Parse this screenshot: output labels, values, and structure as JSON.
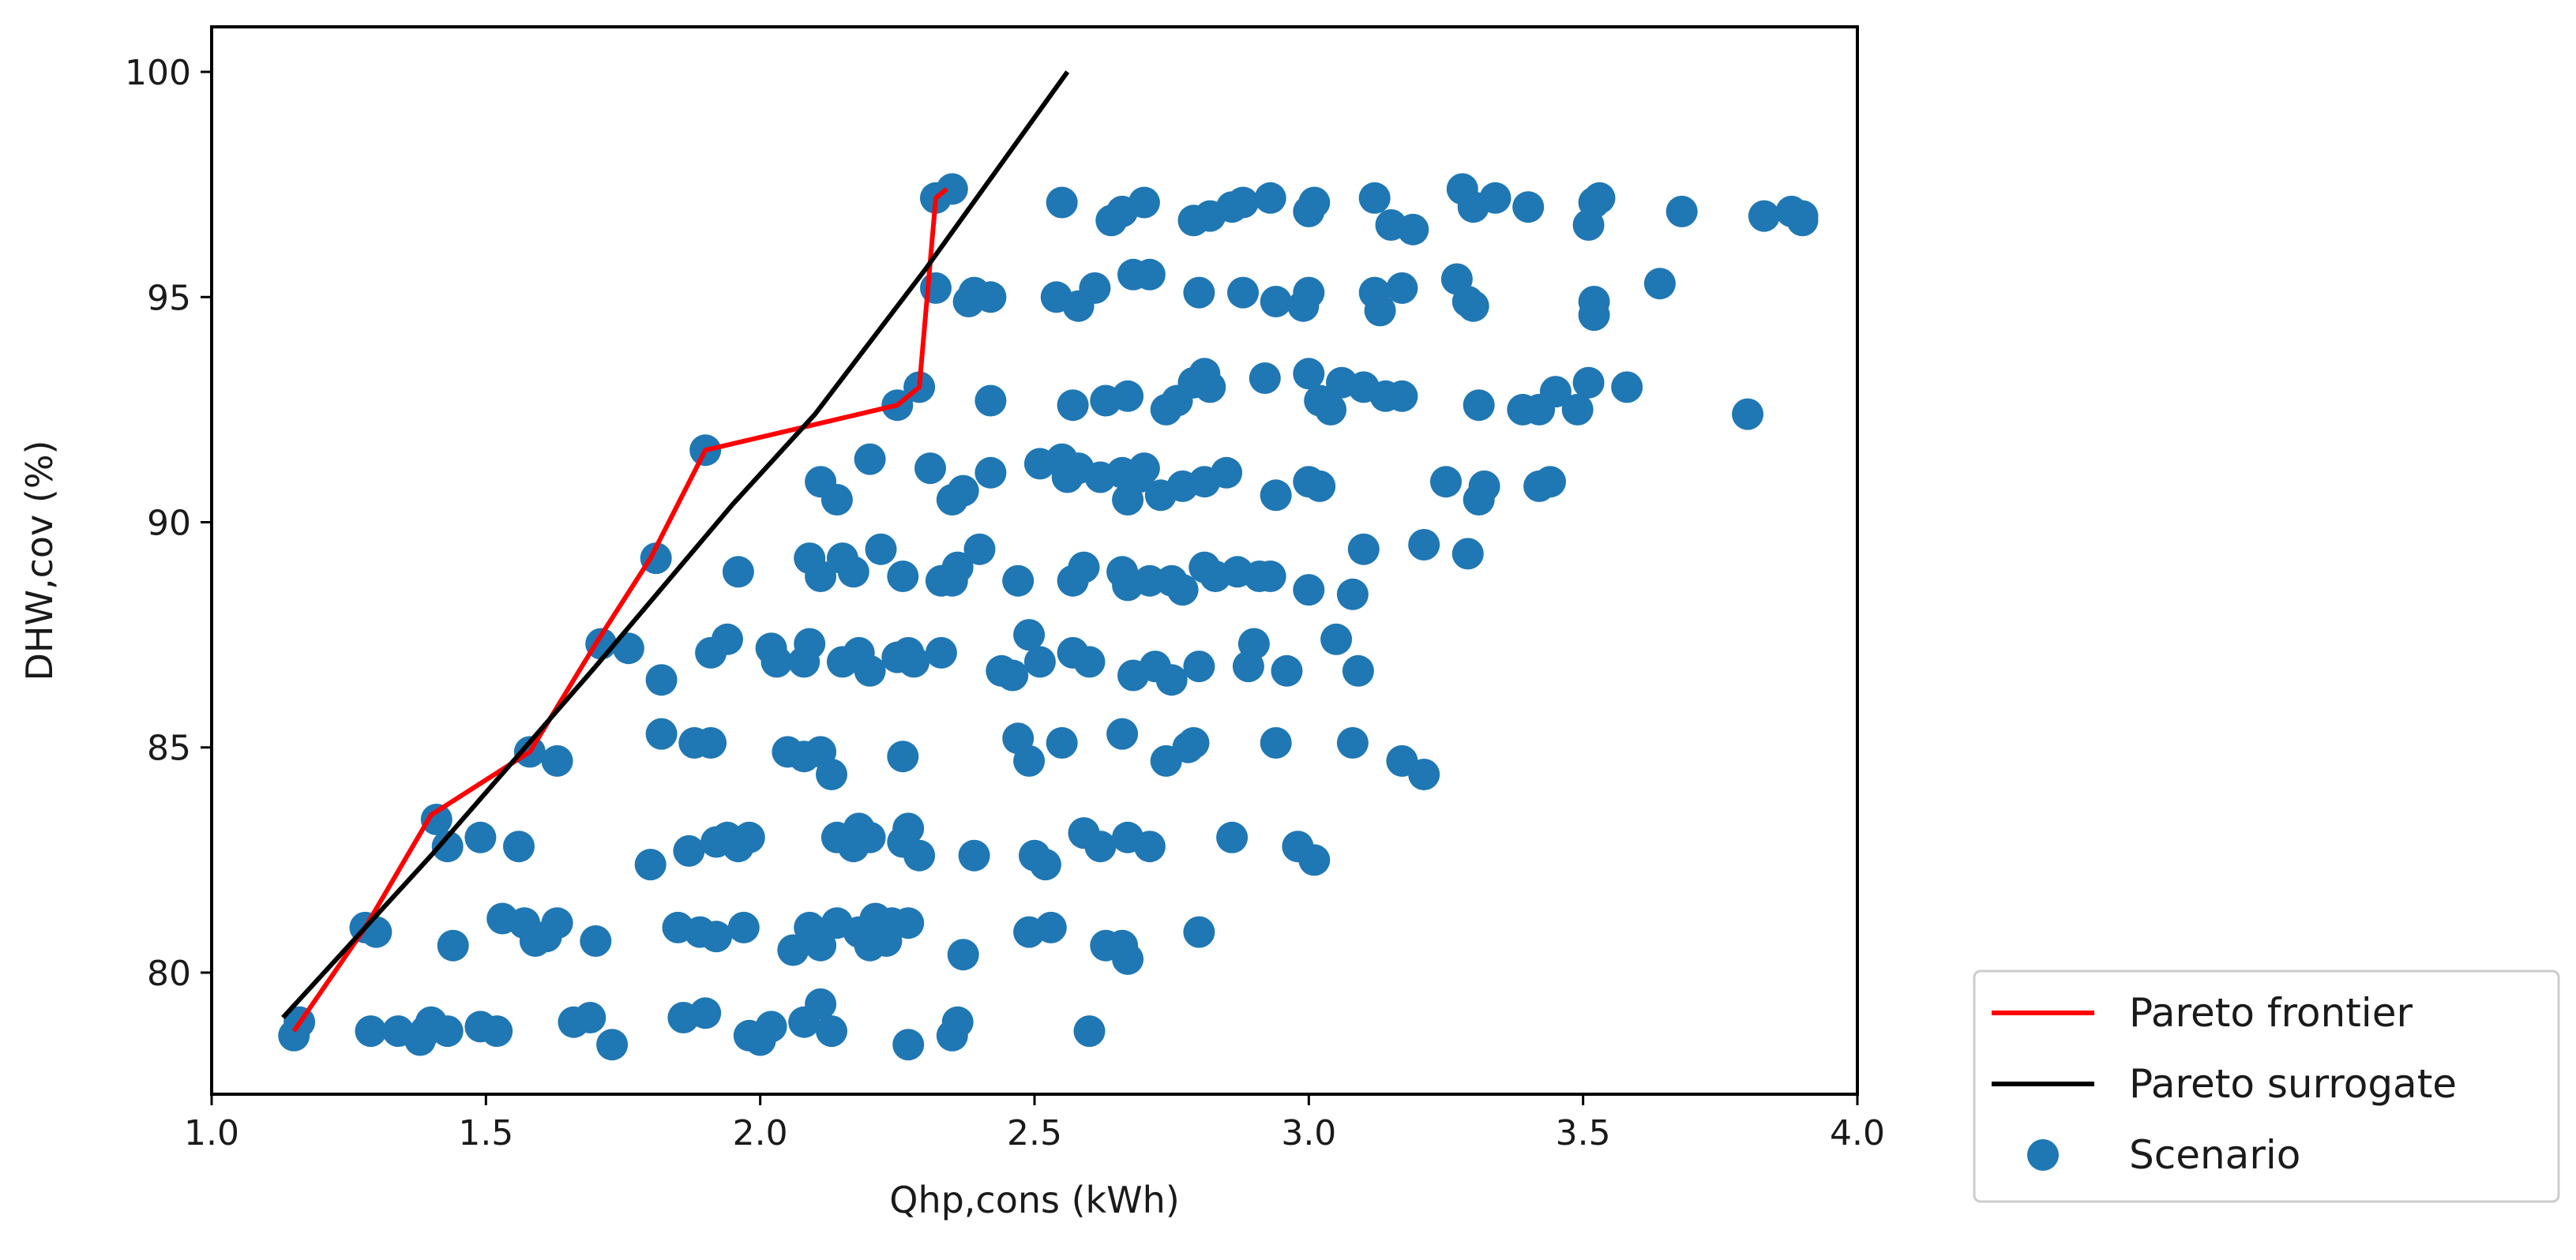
{
  "chart_data": {
    "type": "scatter",
    "title": "",
    "xlabel": "Qhp,cons (kWh)",
    "ylabel": "DHW,cov (%)",
    "xlim": [
      1.0,
      4.0
    ],
    "ylim": [
      77.3,
      101.0
    ],
    "xticks": [
      1.0,
      1.5,
      2.0,
      2.5,
      3.0,
      3.5,
      4.0
    ],
    "xtick_labels": [
      "1.0",
      "1.5",
      "2.0",
      "2.5",
      "3.0",
      "3.5",
      "4.0"
    ],
    "yticks": [
      80,
      85,
      90,
      95,
      100
    ],
    "ytick_labels": [
      "80",
      "85",
      "90",
      "95",
      "100"
    ],
    "grid": false,
    "legend_position": "outside-bottom-right",
    "legend": [
      "Pareto frontier",
      "Pareto surrogate",
      "Scenario"
    ],
    "colors": {
      "pareto_frontier": "#ff0000",
      "pareto_surrogate": "#000000",
      "scenario": "#1f77b4"
    },
    "series": [
      {
        "name": "Pareto frontier",
        "type": "line",
        "x": [
          1.15,
          1.28,
          1.4,
          1.58,
          1.7,
          1.8,
          1.9,
          2.25,
          2.29,
          2.32,
          2.34
        ],
        "y": [
          78.7,
          81.0,
          83.5,
          84.9,
          87.3,
          89.2,
          91.6,
          92.6,
          93.0,
          97.2,
          97.4
        ]
      },
      {
        "name": "Pareto surrogate",
        "type": "line",
        "x": [
          1.13,
          1.4,
          1.7,
          1.95,
          2.1,
          2.3,
          2.56
        ],
        "y": [
          79.0,
          82.6,
          86.8,
          90.4,
          92.4,
          95.6,
          100.0
        ]
      },
      {
        "name": "Scenario",
        "type": "scatter",
        "points": [
          [
            1.15,
            78.6
          ],
          [
            1.16,
            78.9
          ],
          [
            1.29,
            78.7
          ],
          [
            1.34,
            78.7
          ],
          [
            1.38,
            78.5
          ],
          [
            1.39,
            78.7
          ],
          [
            1.4,
            78.9
          ],
          [
            1.43,
            78.7
          ],
          [
            1.49,
            78.8
          ],
          [
            1.52,
            78.7
          ],
          [
            1.66,
            78.9
          ],
          [
            1.69,
            79.0
          ],
          [
            1.73,
            78.4
          ],
          [
            1.86,
            79.0
          ],
          [
            1.9,
            79.1
          ],
          [
            1.98,
            78.6
          ],
          [
            2.0,
            78.5
          ],
          [
            2.02,
            78.8
          ],
          [
            2.08,
            78.9
          ],
          [
            2.11,
            79.3
          ],
          [
            2.13,
            78.7
          ],
          [
            2.27,
            78.4
          ],
          [
            2.35,
            78.6
          ],
          [
            2.36,
            78.9
          ],
          [
            2.6,
            78.7
          ],
          [
            1.28,
            81.0
          ],
          [
            1.3,
            80.9
          ],
          [
            1.44,
            80.6
          ],
          [
            1.53,
            81.2
          ],
          [
            1.57,
            81.1
          ],
          [
            1.59,
            80.7
          ],
          [
            1.61,
            80.8
          ],
          [
            1.63,
            81.1
          ],
          [
            1.7,
            80.7
          ],
          [
            1.85,
            81.0
          ],
          [
            1.89,
            80.9
          ],
          [
            1.92,
            80.8
          ],
          [
            1.97,
            81.0
          ],
          [
            2.06,
            80.5
          ],
          [
            2.09,
            81.0
          ],
          [
            2.11,
            80.6
          ],
          [
            2.14,
            81.1
          ],
          [
            2.18,
            80.9
          ],
          [
            2.2,
            80.6
          ],
          [
            2.21,
            81.2
          ],
          [
            2.23,
            80.7
          ],
          [
            2.24,
            81.1
          ],
          [
            2.27,
            81.1
          ],
          [
            2.37,
            80.4
          ],
          [
            2.49,
            80.9
          ],
          [
            2.53,
            81.0
          ],
          [
            2.63,
            80.6
          ],
          [
            2.66,
            80.6
          ],
          [
            2.67,
            80.3
          ],
          [
            2.8,
            80.9
          ],
          [
            1.41,
            83.4
          ],
          [
            1.43,
            82.8
          ],
          [
            1.49,
            83.0
          ],
          [
            1.56,
            82.8
          ],
          [
            1.8,
            82.4
          ],
          [
            1.87,
            82.7
          ],
          [
            1.92,
            82.9
          ],
          [
            1.94,
            83.0
          ],
          [
            1.96,
            82.8
          ],
          [
            1.98,
            83.0
          ],
          [
            2.14,
            83.0
          ],
          [
            2.17,
            82.8
          ],
          [
            2.18,
            83.2
          ],
          [
            2.2,
            83.0
          ],
          [
            2.26,
            82.9
          ],
          [
            2.27,
            83.2
          ],
          [
            2.29,
            82.6
          ],
          [
            2.39,
            82.6
          ],
          [
            2.5,
            82.6
          ],
          [
            2.52,
            82.4
          ],
          [
            2.59,
            83.1
          ],
          [
            2.62,
            82.8
          ],
          [
            2.67,
            83.0
          ],
          [
            2.71,
            82.8
          ],
          [
            2.86,
            83.0
          ],
          [
            2.98,
            82.8
          ],
          [
            3.01,
            82.5
          ],
          [
            1.58,
            84.9
          ],
          [
            1.63,
            84.7
          ],
          [
            1.82,
            85.3
          ],
          [
            1.88,
            85.1
          ],
          [
            1.91,
            85.1
          ],
          [
            2.05,
            84.9
          ],
          [
            2.08,
            84.8
          ],
          [
            2.11,
            84.9
          ],
          [
            2.13,
            84.4
          ],
          [
            2.26,
            84.8
          ],
          [
            2.47,
            85.2
          ],
          [
            2.49,
            84.7
          ],
          [
            2.55,
            85.1
          ],
          [
            2.66,
            85.3
          ],
          [
            2.74,
            84.7
          ],
          [
            2.78,
            85.0
          ],
          [
            2.79,
            85.1
          ],
          [
            2.94,
            85.1
          ],
          [
            3.08,
            85.1
          ],
          [
            3.17,
            84.7
          ],
          [
            3.21,
            84.4
          ],
          [
            1.71,
            87.3
          ],
          [
            1.76,
            87.2
          ],
          [
            1.82,
            86.5
          ],
          [
            1.91,
            87.1
          ],
          [
            1.94,
            87.4
          ],
          [
            2.02,
            87.2
          ],
          [
            2.03,
            86.9
          ],
          [
            2.08,
            86.9
          ],
          [
            2.09,
            87.3
          ],
          [
            2.15,
            86.9
          ],
          [
            2.18,
            87.1
          ],
          [
            2.2,
            86.7
          ],
          [
            2.25,
            87.0
          ],
          [
            2.27,
            87.1
          ],
          [
            2.28,
            86.9
          ],
          [
            2.33,
            87.1
          ],
          [
            2.44,
            86.7
          ],
          [
            2.46,
            86.6
          ],
          [
            2.49,
            87.5
          ],
          [
            2.51,
            86.9
          ],
          [
            2.57,
            87.1
          ],
          [
            2.6,
            86.9
          ],
          [
            2.68,
            86.6
          ],
          [
            2.72,
            86.8
          ],
          [
            2.75,
            86.5
          ],
          [
            2.8,
            86.8
          ],
          [
            2.89,
            86.8
          ],
          [
            2.9,
            87.3
          ],
          [
            2.96,
            86.7
          ],
          [
            3.05,
            87.4
          ],
          [
            3.09,
            86.7
          ],
          [
            1.81,
            89.2
          ],
          [
            1.96,
            88.9
          ],
          [
            2.09,
            89.2
          ],
          [
            2.11,
            88.8
          ],
          [
            2.15,
            89.2
          ],
          [
            2.17,
            88.9
          ],
          [
            2.22,
            89.4
          ],
          [
            2.26,
            88.8
          ],
          [
            2.33,
            88.7
          ],
          [
            2.35,
            88.7
          ],
          [
            2.36,
            89.0
          ],
          [
            2.4,
            89.4
          ],
          [
            2.47,
            88.7
          ],
          [
            2.57,
            88.7
          ],
          [
            2.59,
            89.0
          ],
          [
            2.66,
            88.9
          ],
          [
            2.67,
            88.6
          ],
          [
            2.71,
            88.7
          ],
          [
            2.75,
            88.7
          ],
          [
            2.77,
            88.5
          ],
          [
            2.81,
            89.0
          ],
          [
            2.83,
            88.8
          ],
          [
            2.87,
            88.9
          ],
          [
            2.91,
            88.8
          ],
          [
            2.93,
            88.8
          ],
          [
            3.0,
            88.5
          ],
          [
            3.08,
            88.4
          ],
          [
            3.1,
            89.4
          ],
          [
            3.21,
            89.5
          ],
          [
            3.29,
            89.3
          ],
          [
            2.11,
            90.9
          ],
          [
            2.14,
            90.5
          ],
          [
            2.2,
            91.4
          ],
          [
            2.31,
            91.2
          ],
          [
            2.35,
            90.5
          ],
          [
            2.37,
            90.7
          ],
          [
            2.42,
            91.1
          ],
          [
            2.51,
            91.3
          ],
          [
            2.55,
            91.4
          ],
          [
            2.56,
            91.0
          ],
          [
            2.58,
            91.2
          ],
          [
            2.62,
            91.0
          ],
          [
            2.66,
            91.1
          ],
          [
            2.67,
            90.5
          ],
          [
            2.69,
            91.0
          ],
          [
            2.7,
            91.2
          ],
          [
            2.73,
            90.6
          ],
          [
            2.77,
            90.8
          ],
          [
            2.81,
            90.9
          ],
          [
            2.85,
            91.1
          ],
          [
            2.94,
            90.6
          ],
          [
            3.0,
            90.9
          ],
          [
            3.02,
            90.8
          ],
          [
            3.25,
            90.9
          ],
          [
            3.31,
            90.5
          ],
          [
            3.32,
            90.8
          ],
          [
            3.42,
            90.8
          ],
          [
            3.44,
            90.9
          ],
          [
            1.9,
            91.6
          ],
          [
            2.25,
            92.6
          ],
          [
            2.29,
            93.0
          ],
          [
            2.42,
            92.7
          ],
          [
            2.57,
            92.6
          ],
          [
            2.63,
            92.7
          ],
          [
            2.67,
            92.8
          ],
          [
            2.74,
            92.5
          ],
          [
            2.76,
            92.7
          ],
          [
            2.79,
            93.1
          ],
          [
            2.81,
            93.3
          ],
          [
            2.82,
            93.0
          ],
          [
            2.92,
            93.2
          ],
          [
            3.0,
            93.3
          ],
          [
            3.02,
            92.7
          ],
          [
            3.04,
            92.5
          ],
          [
            3.06,
            93.1
          ],
          [
            3.1,
            93.0
          ],
          [
            3.14,
            92.8
          ],
          [
            3.17,
            92.8
          ],
          [
            3.31,
            92.6
          ],
          [
            3.39,
            92.5
          ],
          [
            3.42,
            92.5
          ],
          [
            3.45,
            92.9
          ],
          [
            3.49,
            92.5
          ],
          [
            3.51,
            93.1
          ],
          [
            3.58,
            93.0
          ],
          [
            3.8,
            92.4
          ],
          [
            2.32,
            95.2
          ],
          [
            2.38,
            94.9
          ],
          [
            2.39,
            95.1
          ],
          [
            2.42,
            95.0
          ],
          [
            2.54,
            95.0
          ],
          [
            2.58,
            94.8
          ],
          [
            2.61,
            95.2
          ],
          [
            2.68,
            95.5
          ],
          [
            2.71,
            95.5
          ],
          [
            2.8,
            95.1
          ],
          [
            2.88,
            95.1
          ],
          [
            2.94,
            94.9
          ],
          [
            2.99,
            94.8
          ],
          [
            3.0,
            95.1
          ],
          [
            3.12,
            95.1
          ],
          [
            3.13,
            94.7
          ],
          [
            3.17,
            95.2
          ],
          [
            3.27,
            95.4
          ],
          [
            3.29,
            94.9
          ],
          [
            3.3,
            94.8
          ],
          [
            3.52,
            94.9
          ],
          [
            3.52,
            94.6
          ],
          [
            3.64,
            95.3
          ],
          [
            2.32,
            97.2
          ],
          [
            2.35,
            97.4
          ],
          [
            2.55,
            97.1
          ],
          [
            2.64,
            96.7
          ],
          [
            2.66,
            96.9
          ],
          [
            2.7,
            97.1
          ],
          [
            2.79,
            96.7
          ],
          [
            2.82,
            96.8
          ],
          [
            2.86,
            97.0
          ],
          [
            2.88,
            97.1
          ],
          [
            2.93,
            97.2
          ],
          [
            3.0,
            96.9
          ],
          [
            3.01,
            97.1
          ],
          [
            3.12,
            97.2
          ],
          [
            3.15,
            96.6
          ],
          [
            3.19,
            96.5
          ],
          [
            3.28,
            97.4
          ],
          [
            3.3,
            97.0
          ],
          [
            3.34,
            97.2
          ],
          [
            3.4,
            97.0
          ],
          [
            3.51,
            96.6
          ],
          [
            3.52,
            97.1
          ],
          [
            3.53,
            97.2
          ],
          [
            3.68,
            96.9
          ],
          [
            3.83,
            96.8
          ],
          [
            3.88,
            96.9
          ],
          [
            3.9,
            96.8
          ],
          [
            3.9,
            96.7
          ]
        ]
      }
    ]
  }
}
